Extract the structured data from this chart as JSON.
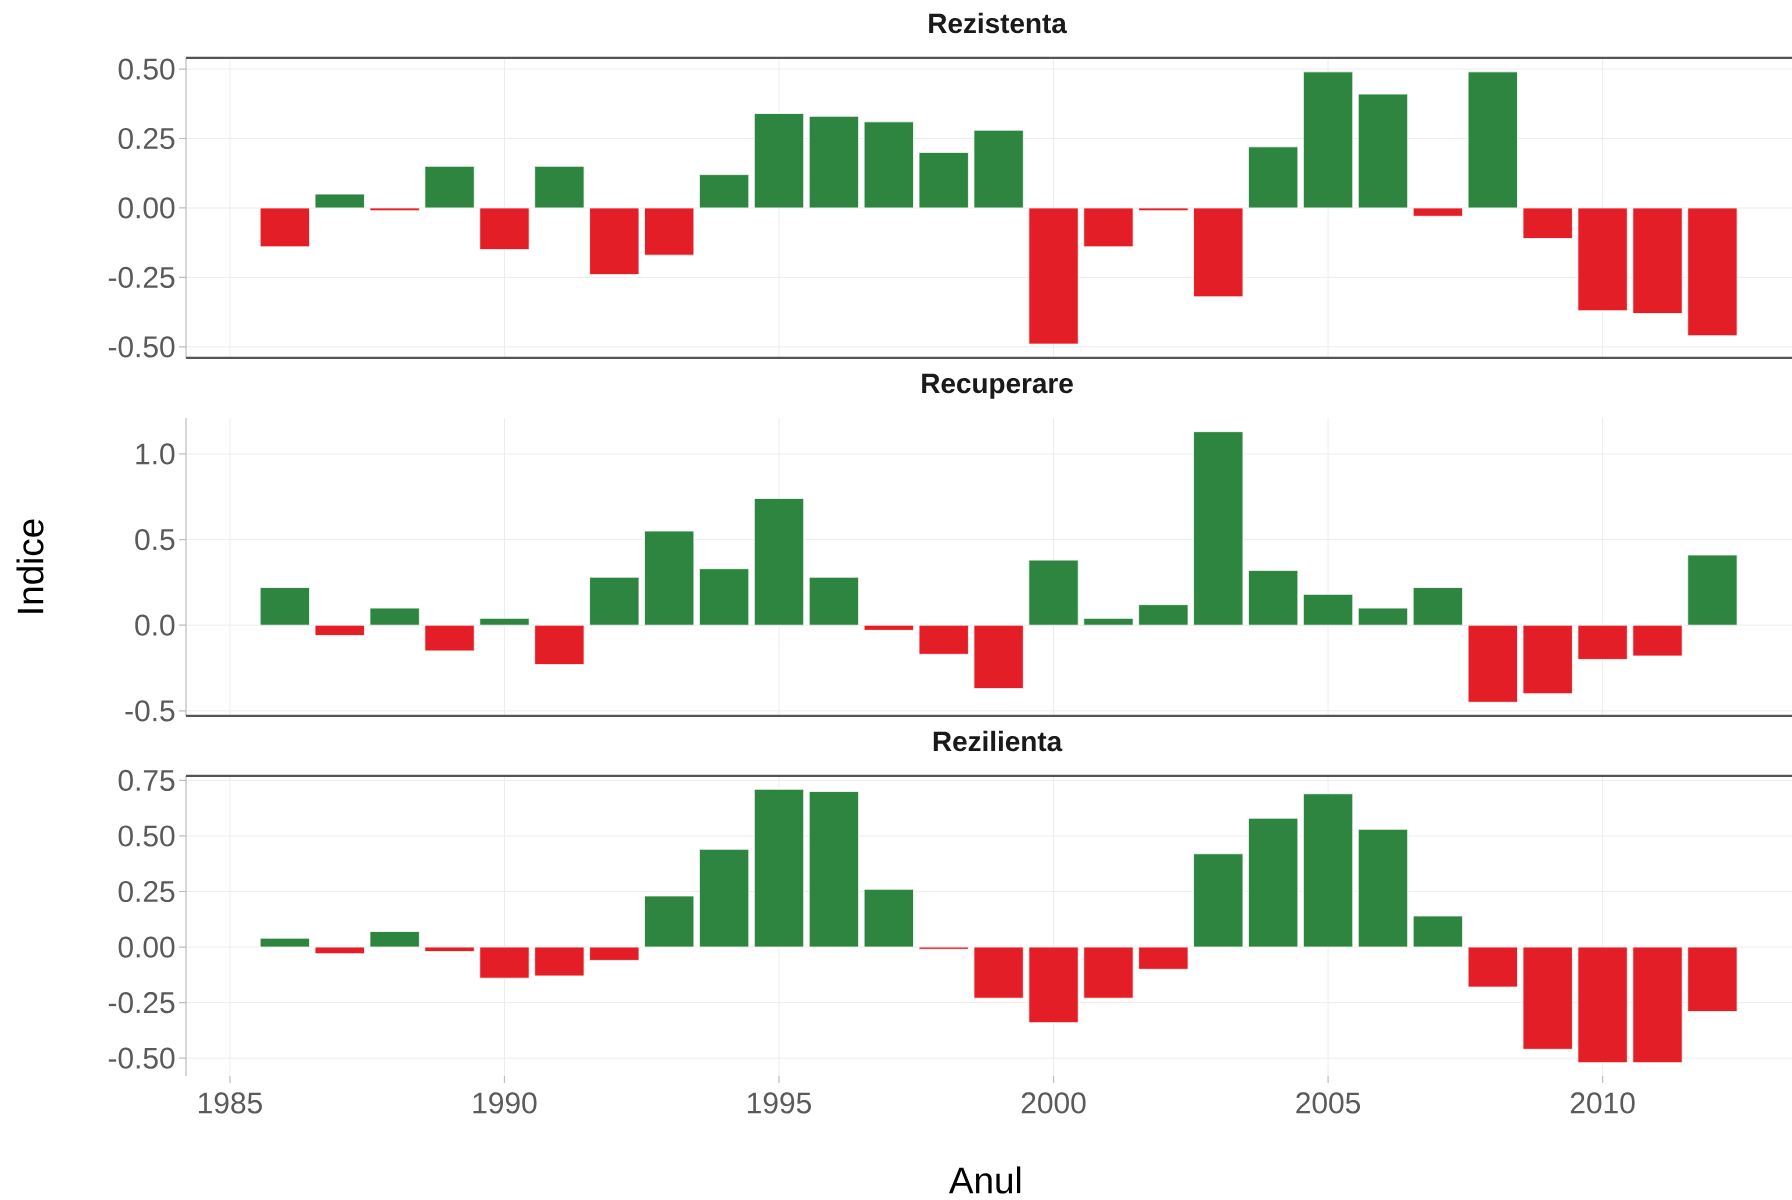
{
  "chart_data": [
    {
      "type": "bar",
      "title": "Rezistenta",
      "x": [
        1986,
        1987,
        1988,
        1989,
        1990,
        1991,
        1992,
        1993,
        1994,
        1995,
        1996,
        1997,
        1998,
        1999,
        2000,
        2001,
        2002,
        2003,
        2004,
        2005,
        2006,
        2007,
        2008,
        2009,
        2010,
        2011,
        2012
      ],
      "values": [
        -0.14,
        0.05,
        -0.01,
        0.15,
        -0.15,
        0.15,
        -0.24,
        -0.17,
        0.12,
        0.34,
        0.33,
        0.31,
        0.2,
        0.28,
        -0.49,
        -0.14,
        -0.01,
        -0.32,
        0.22,
        0.49,
        0.41,
        -0.03,
        0.49,
        -0.11,
        -0.37,
        -0.38,
        -0.46
      ],
      "colors": [
        "#e31e26",
        "#2e8540",
        "#e31e26",
        "#2e8540",
        "#e31e26",
        "#2e8540",
        "#e31e26",
        "#e31e26",
        "#2e8540",
        "#2e8540",
        "#2e8540",
        "#2e8540",
        "#2e8540",
        "#2e8540",
        "#e31e26",
        "#e31e26",
        "#e31e26",
        "#e31e26",
        "#2e8540",
        "#2e8540",
        "#2e8540",
        "#e31e26",
        "#2e8540",
        "#e31e26",
        "#e31e26",
        "#e31e26",
        "#e31e26"
      ],
      "xlim": [
        1984.2,
        2013.45
      ],
      "ylim": [
        -0.54,
        0.54
      ],
      "xticks": [
        1985,
        1990,
        1995,
        2000,
        2005,
        2010
      ],
      "yticks": [
        {
          "value": -0.5,
          "label": "-0.50"
        },
        {
          "value": -0.25,
          "label": "-0.25"
        },
        {
          "value": 0,
          "label": "0.00"
        },
        {
          "value": 0.25,
          "label": "0.25"
        },
        {
          "value": 0.5,
          "label": "0.50"
        }
      ],
      "grid": true,
      "tick_labels": "y"
    },
    {
      "type": "bar",
      "title": "Recuperare",
      "ylabel": "Indice",
      "x": [
        1986,
        1987,
        1988,
        1989,
        1990,
        1991,
        1992,
        1993,
        1994,
        1995,
        1996,
        1997,
        1998,
        1999,
        2000,
        2001,
        2002,
        2003,
        2004,
        2005,
        2006,
        2007,
        2008,
        2009,
        2010,
        2011,
        2012
      ],
      "values": [
        0.22,
        -0.06,
        0.1,
        -0.15,
        0.04,
        -0.23,
        0.28,
        0.55,
        0.33,
        0.74,
        0.28,
        -0.03,
        -0.17,
        -0.37,
        0.38,
        0.04,
        0.12,
        1.13,
        0.32,
        0.18,
        0.1,
        0.22,
        -0.45,
        -0.4,
        -0.2,
        -0.18,
        0.41
      ],
      "colors": [
        "#2e8540",
        "#e31e26",
        "#2e8540",
        "#e31e26",
        "#2e8540",
        "#e31e26",
        "#2e8540",
        "#2e8540",
        "#2e8540",
        "#2e8540",
        "#2e8540",
        "#e31e26",
        "#e31e26",
        "#e31e26",
        "#2e8540",
        "#2e8540",
        "#2e8540",
        "#2e8540",
        "#2e8540",
        "#2e8540",
        "#2e8540",
        "#2e8540",
        "#e31e26",
        "#e31e26",
        "#e31e26",
        "#e31e26",
        "#2e8540"
      ],
      "xlim": [
        1984.2,
        2013.45
      ],
      "ylim": [
        -0.53,
        1.21
      ],
      "xticks": [
        1985,
        1990,
        1995,
        2000,
        2005,
        2010
      ],
      "yticks": [
        -0.5,
        {
          "value": 0,
          "label": "0.0"
        },
        0.5,
        {
          "value": 1,
          "label": "1.0"
        }
      ],
      "grid": true,
      "tick_labels": "y"
    },
    {
      "type": "bar",
      "title": "Rezilienta",
      "xlabel": "Anul",
      "x": [
        1986,
        1987,
        1988,
        1989,
        1990,
        1991,
        1992,
        1993,
        1994,
        1995,
        1996,
        1997,
        1998,
        1999,
        2000,
        2001,
        2002,
        2003,
        2004,
        2005,
        2006,
        2007,
        2008,
        2009,
        2010,
        2011,
        2012
      ],
      "values": [
        0.04,
        -0.03,
        0.07,
        -0.02,
        -0.14,
        -0.13,
        -0.06,
        0.23,
        0.44,
        0.71,
        0.7,
        0.26,
        -0.01,
        -0.23,
        -0.34,
        -0.23,
        -0.1,
        0.42,
        0.58,
        0.69,
        0.53,
        0.14,
        -0.18,
        -0.46,
        -0.52,
        -0.52,
        -0.29
      ],
      "colors": [
        "#2e8540",
        "#e31e26",
        "#2e8540",
        "#e31e26",
        "#e31e26",
        "#e31e26",
        "#e31e26",
        "#2e8540",
        "#2e8540",
        "#2e8540",
        "#2e8540",
        "#2e8540",
        "#e31e26",
        "#e31e26",
        "#e31e26",
        "#e31e26",
        "#e31e26",
        "#2e8540",
        "#2e8540",
        "#2e8540",
        "#2e8540",
        "#2e8540",
        "#e31e26",
        "#e31e26",
        "#e31e26",
        "#e31e26",
        "#e31e26"
      ],
      "xlim": [
        1984.2,
        2013.45
      ],
      "ylim": [
        -0.58,
        0.77
      ],
      "xticks": [
        1985,
        1990,
        1995,
        2000,
        2005,
        2010
      ],
      "yticks": [
        {
          "value": -0.5,
          "label": "-0.50"
        },
        {
          "value": -0.25,
          "label": "-0.25"
        },
        {
          "value": 0,
          "label": "0.00"
        },
        {
          "value": 0.25,
          "label": "0.25"
        },
        {
          "value": 0.5,
          "label": "0.50"
        },
        {
          "value": 0.75,
          "label": "0.75"
        }
      ],
      "grid": true
    }
  ]
}
